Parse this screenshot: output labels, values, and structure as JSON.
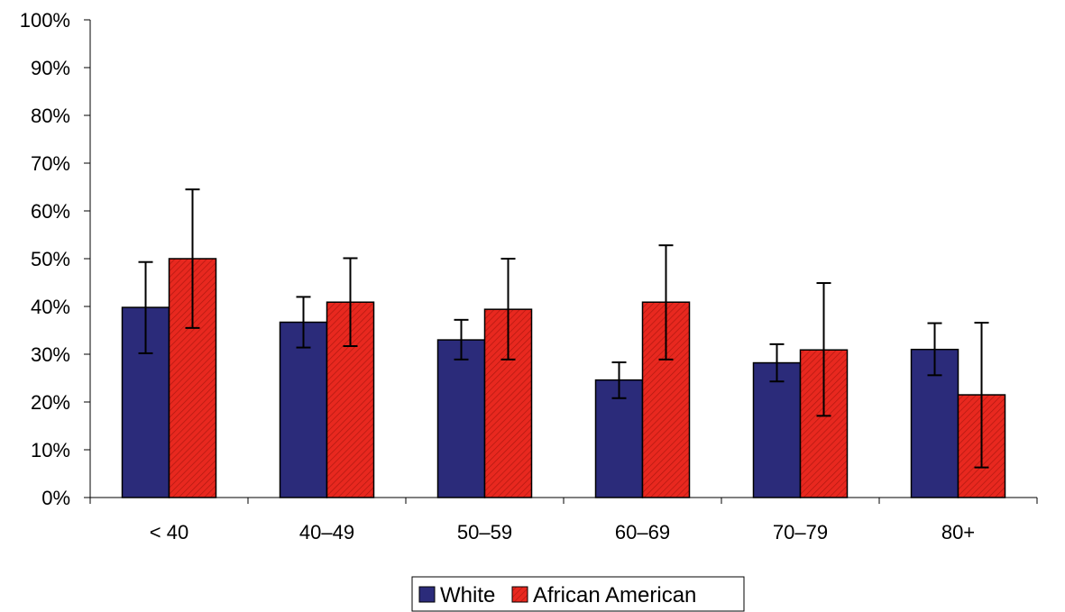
{
  "chart_data": {
    "type": "bar",
    "title": "",
    "xlabel": "",
    "ylabel": "",
    "categories": [
      "< 40",
      "40–49",
      "50–59",
      "60–69",
      "70–79",
      "80+"
    ],
    "ylim": [
      0,
      100
    ],
    "yticks": [
      0,
      10,
      20,
      30,
      40,
      50,
      60,
      70,
      80,
      90,
      100
    ],
    "ytick_labels": [
      "0%",
      "10%",
      "20%",
      "30%",
      "40%",
      "50%",
      "60%",
      "70%",
      "80%",
      "90%",
      "100%"
    ],
    "grid": false,
    "legend_position": "bottom",
    "series": [
      {
        "name": "White",
        "color": "#2b2b7a",
        "pattern": "solid",
        "values": [
          39.8,
          36.7,
          33.0,
          24.6,
          28.2,
          31.0
        ],
        "error_low": [
          30.2,
          31.4,
          28.9,
          20.8,
          24.3,
          25.6
        ],
        "error_high": [
          49.3,
          42.0,
          37.2,
          28.3,
          32.1,
          36.5
        ]
      },
      {
        "name": "African American",
        "color": "#e8281f",
        "pattern": "hatched",
        "values": [
          50.0,
          40.9,
          39.4,
          40.9,
          30.9,
          21.5
        ],
        "error_low": [
          35.5,
          31.7,
          28.9,
          28.9,
          17.1,
          6.3
        ],
        "error_high": [
          64.5,
          50.1,
          50.0,
          52.8,
          44.9,
          36.6
        ]
      }
    ]
  }
}
